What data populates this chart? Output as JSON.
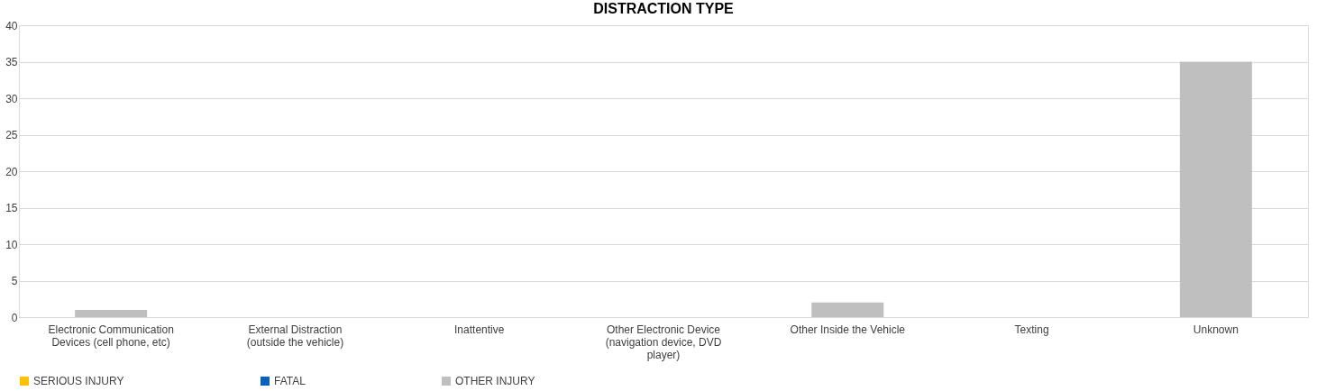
{
  "chart_data": {
    "type": "bar",
    "title": "DISTRACTION TYPE",
    "stacked": true,
    "categories": [
      "Electronic Communication Devices (cell phone, etc)",
      "External Distraction (outside the vehicle)",
      "Inattentive",
      "Other Electronic Device (navigation device, DVD player)",
      "Other Inside the Vehicle",
      "Texting",
      "Unknown"
    ],
    "series": [
      {
        "name": "SERIOUS INJURY",
        "color": "#ffc000",
        "values": [
          0,
          0,
          0,
          0,
          0,
          0,
          0
        ]
      },
      {
        "name": "FATAL",
        "color": "#0563c1",
        "values": [
          0,
          0,
          0,
          0,
          0,
          0,
          0
        ]
      },
      {
        "name": "OTHER INJURY",
        "color": "#bfbfbf",
        "values": [
          1,
          0,
          0,
          0,
          2,
          0,
          35
        ]
      }
    ],
    "ylim": [
      0,
      40
    ],
    "yticks": [
      0,
      5,
      10,
      15,
      20,
      25,
      30,
      35,
      40
    ],
    "grid": "y",
    "legend": "bottom"
  }
}
